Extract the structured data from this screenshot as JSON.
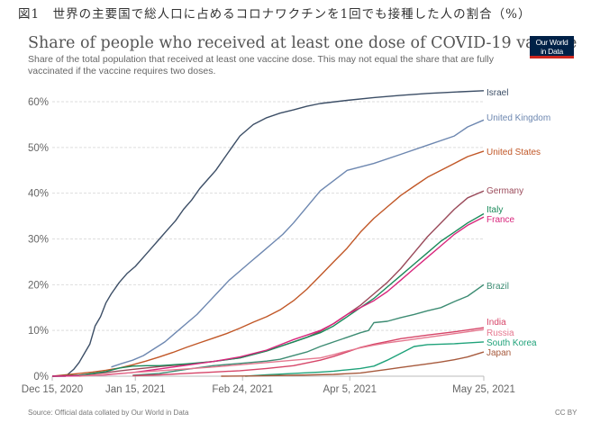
{
  "figure_caption": "図1　世界の主要国で総人口に占めるコロナワクチンを1回でも接種した人の割合（%）",
  "header": {
    "title": "Share of people who received at least one dose of COVID-19 vaccine",
    "subtitle": "Share of the total population that received at least one vaccine dose. This may not equal the share that are fully vaccinated if the vaccine requires two doses.",
    "logo_line1": "Our World",
    "logo_line2": "in Data"
  },
  "footer": {
    "source": "Source: Official data collated by Our World in Data",
    "license": "CC BY"
  },
  "chart_data": {
    "type": "line",
    "title": "Share of people who received at least one dose of COVID-19 vaccine",
    "xlabel": "",
    "ylabel": "",
    "x_unit": "days since Dec 15, 2020",
    "xlim": [
      0,
      161
    ],
    "ylim": [
      0,
      60
    ],
    "y_ticks": [
      0,
      10,
      20,
      30,
      40,
      50,
      60
    ],
    "y_tick_labels": [
      "0%",
      "10%",
      "20%",
      "30%",
      "40%",
      "50%",
      "60%"
    ],
    "x_ticks": [
      0,
      31,
      71,
      111,
      161
    ],
    "x_tick_labels": [
      "Dec 15, 2020",
      "Jan 15, 2021",
      "Feb 24, 2021",
      "Apr 5, 2021",
      "May 25, 2021"
    ],
    "grid": "horizontal-dashed",
    "legend": "right (inline labels at line ends)",
    "series": [
      {
        "name": "Israel",
        "color": "#3c4e66",
        "x": [
          0,
          5,
          8,
          10,
          12,
          14,
          16,
          18,
          20,
          22,
          25,
          28,
          31,
          34,
          37,
          40,
          43,
          46,
          49,
          52,
          55,
          58,
          61,
          64,
          67,
          70,
          75,
          80,
          85,
          90,
          95,
          100,
          110,
          120,
          130,
          140,
          150,
          161
        ],
        "y": [
          0,
          0,
          1.5,
          3,
          5,
          7,
          11,
          13,
          16,
          18,
          20.5,
          22.5,
          24,
          26,
          28,
          30,
          32,
          34,
          36.5,
          38.5,
          41,
          43,
          45,
          47.5,
          50,
          52.5,
          55,
          56.5,
          57.5,
          58.2,
          59,
          59.6,
          60.3,
          60.9,
          61.4,
          61.8,
          62.1,
          62.4
        ]
      },
      {
        "name": "United Kingdom",
        "color": "#6d87b0",
        "x": [
          22,
          26,
          30,
          34,
          38,
          42,
          46,
          50,
          54,
          58,
          62,
          66,
          70,
          74,
          78,
          82,
          86,
          90,
          95,
          100,
          110,
          120,
          130,
          140,
          150,
          155,
          161
        ],
        "y": [
          2,
          2.8,
          3.5,
          4.5,
          6,
          7.5,
          9.5,
          11.5,
          13.5,
          16,
          18.5,
          21,
          23,
          25,
          27,
          29,
          31,
          33.5,
          37,
          40.5,
          45,
          46.5,
          48.5,
          50.5,
          52.5,
          54.5,
          56
        ]
      },
      {
        "name": "United States",
        "color": "#c15727",
        "x": [
          0,
          5,
          10,
          15,
          20,
          25,
          30,
          35,
          40,
          45,
          50,
          55,
          60,
          65,
          70,
          75,
          80,
          85,
          90,
          95,
          100,
          105,
          110,
          115,
          120,
          125,
          130,
          135,
          140,
          145,
          150,
          155,
          161
        ],
        "y": [
          0,
          0.3,
          0.6,
          0.9,
          1.3,
          1.8,
          2.5,
          3.3,
          4.2,
          5.2,
          6.3,
          7.3,
          8.3,
          9.3,
          10.5,
          11.8,
          13,
          14.5,
          16.5,
          19,
          22,
          25,
          28,
          31.5,
          34.5,
          37,
          39.5,
          41.5,
          43.5,
          45,
          46.5,
          48,
          49.2
        ]
      },
      {
        "name": "Germany",
        "color": "#9a4a5a",
        "x": [
          0,
          10,
          20,
          30,
          40,
          50,
          60,
          70,
          80,
          90,
          95,
          100,
          105,
          110,
          115,
          120,
          125,
          130,
          135,
          140,
          145,
          150,
          155,
          161
        ],
        "y": [
          0,
          0.2,
          0.8,
          1.5,
          2.1,
          2.6,
          3.2,
          4,
          5.5,
          7.5,
          8.5,
          9.8,
          11.5,
          13.5,
          15.5,
          18,
          20.5,
          23.5,
          27,
          30.5,
          33.5,
          36.5,
          39,
          40.5
        ]
      },
      {
        "name": "Italy",
        "color": "#1a8a5a",
        "x": [
          0,
          10,
          20,
          25,
          30,
          35,
          40,
          50,
          60,
          70,
          80,
          90,
          95,
          100,
          105,
          110,
          115,
          120,
          125,
          130,
          135,
          140,
          145,
          150,
          155,
          161
        ],
        "y": [
          0,
          0.2,
          1,
          1.8,
          2.2,
          2.3,
          2.3,
          2.7,
          3.2,
          4,
          5.5,
          7.5,
          8.5,
          9.5,
          11,
          13,
          15,
          17,
          19.5,
          22,
          24.5,
          27,
          29.5,
          31.5,
          33.5,
          35.5
        ]
      },
      {
        "name": "France",
        "color": "#d8267c",
        "x": [
          0,
          10,
          20,
          30,
          40,
          50,
          60,
          70,
          80,
          90,
          95,
          100,
          105,
          110,
          115,
          120,
          125,
          130,
          135,
          140,
          145,
          150,
          155,
          161
        ],
        "y": [
          0,
          0.1,
          0.3,
          0.8,
          1.6,
          2.4,
          3.2,
          4.2,
          5.7,
          8,
          9,
          10,
          11.5,
          13.5,
          15,
          16.5,
          18.5,
          21,
          23.5,
          26,
          28.5,
          31,
          33,
          34.8
        ]
      },
      {
        "name": "Brazil",
        "color": "#3d8c73",
        "x": [
          30,
          40,
          50,
          60,
          70,
          80,
          85,
          90,
          95,
          100,
          105,
          110,
          115,
          118,
          120,
          125,
          130,
          135,
          140,
          145,
          150,
          155,
          161
        ],
        "y": [
          0.2,
          0.6,
          1.5,
          2.3,
          2.8,
          3.3,
          3.7,
          4.5,
          5.3,
          6.5,
          7.5,
          8.5,
          9.5,
          10,
          11.7,
          12,
          12.8,
          13.5,
          14.3,
          15,
          16.3,
          17.5,
          20
        ]
      },
      {
        "name": "India",
        "color": "#d64568",
        "x": [
          30,
          40,
          50,
          60,
          70,
          80,
          90,
          100,
          105,
          110,
          115,
          120,
          125,
          130,
          140,
          150,
          161
        ],
        "y": [
          0.1,
          0.3,
          0.6,
          0.9,
          1.2,
          1.7,
          2.3,
          3.5,
          4.3,
          5.3,
          6.3,
          7,
          7.6,
          8.2,
          9,
          9.7,
          10.6
        ]
      },
      {
        "name": "Russia",
        "color": "#e5788f",
        "x": [
          10,
          20,
          30,
          40,
          50,
          60,
          70,
          80,
          90,
          100,
          105,
          110,
          115,
          120,
          125,
          130,
          140,
          150,
          161
        ],
        "y": [
          0,
          0.4,
          0.8,
          1.2,
          1.6,
          2,
          2.5,
          3,
          3.5,
          4,
          4.7,
          5.5,
          6.2,
          6.8,
          7.3,
          7.7,
          8.5,
          9.3,
          10.2
        ]
      },
      {
        "name": "South Korea",
        "color": "#1fa27a",
        "x": [
          72,
          80,
          90,
          100,
          105,
          110,
          115,
          120,
          125,
          130,
          135,
          140,
          150,
          161
        ],
        "y": [
          0,
          0.3,
          0.6,
          0.9,
          1.1,
          1.4,
          1.7,
          2.2,
          3.5,
          5,
          6.5,
          6.9,
          7.1,
          7.5
        ]
      },
      {
        "name": "Japan",
        "color": "#a75a3d",
        "x": [
          63,
          75,
          90,
          105,
          115,
          120,
          125,
          130,
          135,
          140,
          145,
          150,
          155,
          161
        ],
        "y": [
          0,
          0.05,
          0.2,
          0.4,
          0.7,
          1.1,
          1.5,
          1.9,
          2.3,
          2.7,
          3.1,
          3.6,
          4.2,
          5.3
        ]
      }
    ]
  }
}
